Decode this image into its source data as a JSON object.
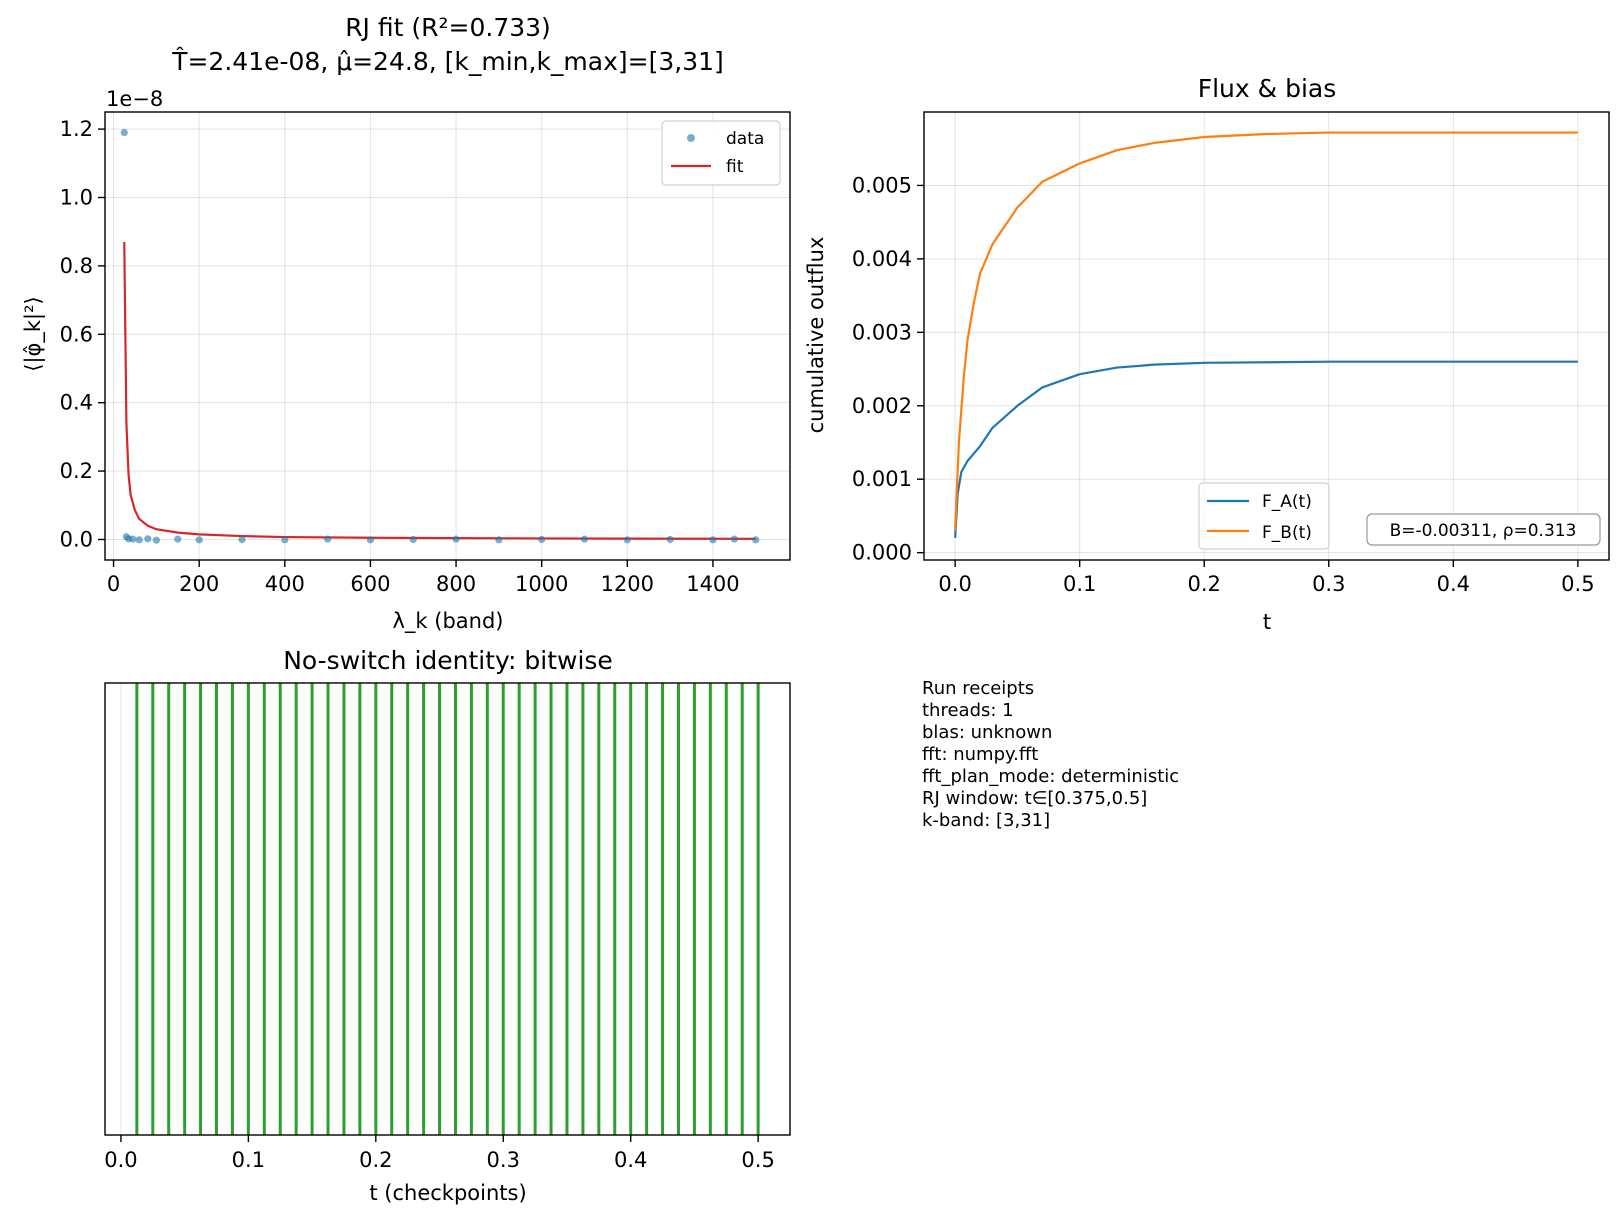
{
  "colors": {
    "data": "#1f77b4",
    "fit": "#d62728",
    "fa": "#1f77b4",
    "fb": "#ff7f0e",
    "checkpoint": "#2ca02c"
  },
  "chart_data": [
    {
      "type": "scatter",
      "title": "RJ fit (R²=0.733)",
      "subtitle": "T̂=2.41e-08, μ̂=24.8, [k_min,k_max]=[3,31]",
      "xlabel": "λ_k (band)",
      "ylabel": "⟨|φ̂_k|²⟩",
      "offset_text": "1e−8",
      "xlim": [
        -20,
        1580
      ],
      "ylim": [
        -0.06,
        1.25
      ],
      "xticks": [
        0,
        200,
        400,
        600,
        800,
        1000,
        1200,
        1400
      ],
      "yticks": [
        0.0,
        0.2,
        0.4,
        0.6,
        0.8,
        1.0,
        1.2
      ],
      "ytick_labels": [
        "0.0",
        "0.2",
        "0.4",
        "0.6",
        "0.8",
        "1.0",
        "1.2"
      ],
      "grid": true,
      "legend": {
        "position": "top-right",
        "entries": [
          "data",
          "fit"
        ]
      },
      "series": [
        {
          "name": "data",
          "kind": "scatter",
          "points": [
            [
              25,
              1.19
            ],
            [
              30,
              0.008
            ],
            [
              35,
              0.002
            ],
            [
              45,
              0.001
            ],
            [
              60,
              -0.001
            ],
            [
              80,
              0.002
            ],
            [
              100,
              -0.002
            ],
            [
              150,
              0.001
            ],
            [
              200,
              -0.001
            ],
            [
              300,
              0.0
            ],
            [
              400,
              -0.001
            ],
            [
              500,
              0.001
            ],
            [
              600,
              -0.001
            ],
            [
              700,
              0.0
            ],
            [
              800,
              0.001
            ],
            [
              900,
              -0.001
            ],
            [
              1000,
              0.0
            ],
            [
              1100,
              0.001
            ],
            [
              1200,
              -0.001
            ],
            [
              1300,
              0.0
            ],
            [
              1400,
              -0.001
            ],
            [
              1450,
              0.001
            ],
            [
              1500,
              -0.001
            ]
          ]
        },
        {
          "name": "fit",
          "kind": "line",
          "points": [
            [
              25,
              0.87
            ],
            [
              30,
              0.34
            ],
            [
              35,
              0.19
            ],
            [
              40,
              0.13
            ],
            [
              50,
              0.085
            ],
            [
              60,
              0.06
            ],
            [
              80,
              0.04
            ],
            [
              100,
              0.03
            ],
            [
              150,
              0.02
            ],
            [
              200,
              0.015
            ],
            [
              300,
              0.01
            ],
            [
              400,
              0.007
            ],
            [
              600,
              0.005
            ],
            [
              800,
              0.004
            ],
            [
              1000,
              0.003
            ],
            [
              1200,
              0.0025
            ],
            [
              1500,
              0.002
            ]
          ]
        }
      ]
    },
    {
      "type": "line",
      "title": "Flux & bias",
      "xlabel": "t",
      "ylabel": "cumulative outflux",
      "xlim": [
        -0.025,
        0.525
      ],
      "ylim": [
        -0.0001,
        0.006
      ],
      "xticks": [
        0.0,
        0.1,
        0.2,
        0.3,
        0.4,
        0.5
      ],
      "xtick_labels": [
        "0.0",
        "0.1",
        "0.2",
        "0.3",
        "0.4",
        "0.5"
      ],
      "yticks": [
        0.0,
        0.001,
        0.002,
        0.003,
        0.004,
        0.005
      ],
      "ytick_labels": [
        "0.000",
        "0.001",
        "0.002",
        "0.003",
        "0.004",
        "0.005"
      ],
      "grid": true,
      "legend": {
        "position": "lower-center",
        "entries": [
          "F_A(t)",
          "F_B(t)"
        ]
      },
      "annotation": "B=-0.00311, ρ=0.313",
      "series": [
        {
          "name": "F_A(t)",
          "points": [
            [
              0.0,
              0.0002
            ],
            [
              0.002,
              0.0008
            ],
            [
              0.005,
              0.0011
            ],
            [
              0.01,
              0.00125
            ],
            [
              0.02,
              0.00145
            ],
            [
              0.03,
              0.0017
            ],
            [
              0.05,
              0.002
            ],
            [
              0.07,
              0.00225
            ],
            [
              0.1,
              0.00243
            ],
            [
              0.13,
              0.00252
            ],
            [
              0.16,
              0.00256
            ],
            [
              0.2,
              0.002585
            ],
            [
              0.3,
              0.0026
            ],
            [
              0.4,
              0.0026
            ],
            [
              0.5,
              0.0026
            ]
          ]
        },
        {
          "name": "F_B(t)",
          "points": [
            [
              0.0,
              0.0003
            ],
            [
              0.003,
              0.0015
            ],
            [
              0.007,
              0.0024
            ],
            [
              0.01,
              0.0029
            ],
            [
              0.015,
              0.0034
            ],
            [
              0.02,
              0.0038
            ],
            [
              0.03,
              0.0042
            ],
            [
              0.05,
              0.0047
            ],
            [
              0.07,
              0.00505
            ],
            [
              0.1,
              0.0053
            ],
            [
              0.13,
              0.00548
            ],
            [
              0.16,
              0.00558
            ],
            [
              0.2,
              0.00566
            ],
            [
              0.25,
              0.0057
            ],
            [
              0.3,
              0.00572
            ],
            [
              0.4,
              0.00572
            ],
            [
              0.5,
              0.00572
            ]
          ]
        }
      ]
    },
    {
      "type": "line",
      "title": "No-switch identity: bitwise",
      "xlabel": "t (checkpoints)",
      "xlim": [
        -0.0125,
        0.525
      ],
      "xticks": [
        0.0,
        0.1,
        0.2,
        0.3,
        0.4,
        0.5
      ],
      "xtick_labels": [
        "0.0",
        "0.1",
        "0.2",
        "0.3",
        "0.4",
        "0.5"
      ],
      "grid": true,
      "checkpoints": [
        0.0125,
        0.025,
        0.0375,
        0.05,
        0.0625,
        0.075,
        0.0875,
        0.1,
        0.1125,
        0.125,
        0.1375,
        0.15,
        0.1625,
        0.175,
        0.1875,
        0.2,
        0.2125,
        0.225,
        0.2375,
        0.25,
        0.2625,
        0.275,
        0.2875,
        0.3,
        0.3125,
        0.325,
        0.3375,
        0.35,
        0.3625,
        0.375,
        0.3875,
        0.4,
        0.4125,
        0.425,
        0.4375,
        0.45,
        0.4625,
        0.475,
        0.4875,
        0.5
      ]
    }
  ],
  "receipts": [
    "Run receipts",
    "threads: 1",
    "blas: unknown",
    "fft: numpy.fft",
    "fft_plan_mode: deterministic",
    "RJ window: t∈[0.375,0.5]",
    "k-band: [3,31]"
  ]
}
